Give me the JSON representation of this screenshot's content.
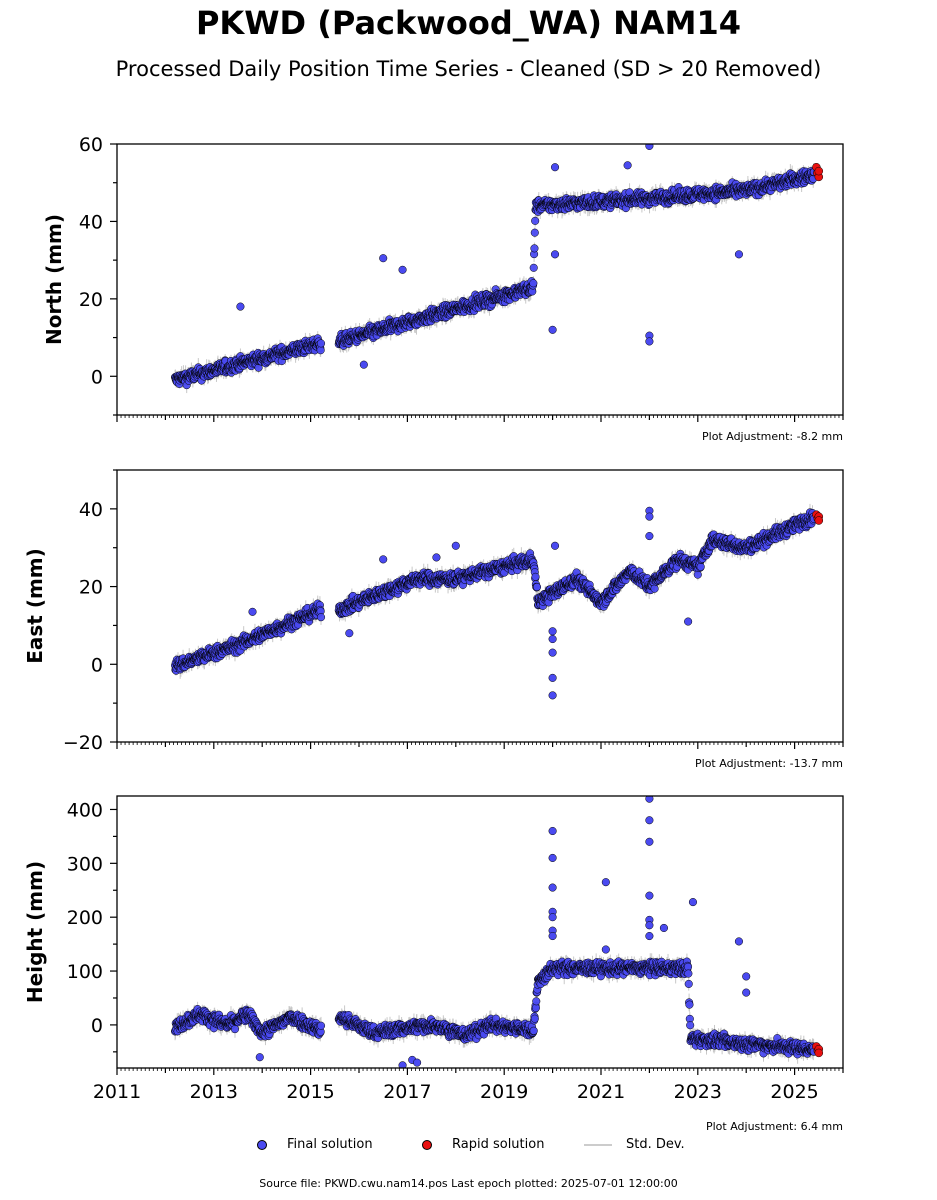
{
  "title": "PKWD (Packwood_WA) NAM14",
  "subtitle": "Processed Daily Position Time Series - Cleaned (SD > 20 Removed)",
  "legend": {
    "final": "Final solution",
    "rapid": "Rapid solution",
    "stddev": "Std. Dev."
  },
  "footer": "Source file: PKWD.cwu.nam14.pos  Last epoch plotted: 2025-07-01 12:00:00",
  "colors": {
    "final": "#4a4af0",
    "rapid": "#e81010",
    "stddev": "#c8c8c8",
    "edge": "#000000"
  },
  "chart_data": [
    {
      "type": "scatter",
      "ylabel": "North (mm)",
      "ylim": [
        -10,
        60
      ],
      "yticks": [
        0,
        20,
        40,
        60
      ],
      "xlim": [
        2011,
        2026
      ],
      "xticks": [],
      "adjustment": "Plot Adjustment: -8.2 mm",
      "trend": [
        [
          2012.2,
          -1
        ],
        [
          2015.2,
          8.5
        ],
        [
          2015.6,
          9
        ],
        [
          2019.6,
          23
        ],
        [
          2019.65,
          44
        ],
        [
          2022.0,
          46
        ],
        [
          2024.0,
          48
        ],
        [
          2025.4,
          52
        ]
      ],
      "outliers": [
        [
          2013.55,
          18
        ],
        [
          2016.5,
          30.5
        ],
        [
          2016.9,
          27.5
        ],
        [
          2020.0,
          12
        ],
        [
          2022.0,
          10.5
        ],
        [
          2022.0,
          9
        ],
        [
          2022.0,
          59.5
        ],
        [
          2021.55,
          54.5
        ],
        [
          2023.85,
          31.5
        ],
        [
          2020.05,
          54
        ],
        [
          2020.05,
          31.5
        ],
        [
          2016.1,
          3
        ]
      ],
      "rapid": [
        [
          2025.45,
          54
        ],
        [
          2025.47,
          52.5
        ],
        [
          2025.5,
          51.5
        ],
        [
          2025.5,
          53
        ]
      ]
    },
    {
      "type": "scatter",
      "ylabel": "East (mm)",
      "ylim": [
        -20,
        50
      ],
      "yticks": [
        -20,
        0,
        20,
        40
      ],
      "xlim": [
        2011,
        2026
      ],
      "xticks": [],
      "adjustment": "Plot Adjustment: -13.7 mm",
      "trend": [
        [
          2012.2,
          -0.5
        ],
        [
          2013.5,
          5
        ],
        [
          2015.2,
          14
        ],
        [
          2015.6,
          14
        ],
        [
          2017.2,
          22
        ],
        [
          2018.0,
          22
        ],
        [
          2019.6,
          27
        ],
        [
          2019.7,
          16
        ],
        [
          2020.5,
          22
        ],
        [
          2021.0,
          16
        ],
        [
          2021.6,
          24
        ],
        [
          2022.0,
          20
        ],
        [
          2022.6,
          27
        ],
        [
          2023.0,
          25
        ],
        [
          2023.3,
          32
        ],
        [
          2024.0,
          30
        ],
        [
          2025.4,
          38
        ]
      ],
      "outliers": [
        [
          2013.8,
          13.5
        ],
        [
          2016.5,
          27
        ],
        [
          2017.6,
          27.5
        ],
        [
          2018.0,
          30.5
        ],
        [
          2020.0,
          -3.5
        ],
        [
          2020.0,
          -8
        ],
        [
          2020.0,
          3
        ],
        [
          2020.0,
          6.5
        ],
        [
          2020.0,
          8.5
        ],
        [
          2020.05,
          30.5
        ],
        [
          2022.0,
          39.5
        ],
        [
          2022.0,
          38
        ],
        [
          2022.0,
          33
        ],
        [
          2022.8,
          11
        ],
        [
          2015.8,
          8
        ]
      ],
      "rapid": [
        [
          2025.45,
          38.5
        ],
        [
          2025.48,
          37.5
        ],
        [
          2025.5,
          38
        ],
        [
          2025.5,
          37
        ]
      ]
    },
    {
      "type": "scatter",
      "ylabel": "Height (mm)",
      "ylim": [
        -80,
        425
      ],
      "yticks": [
        0,
        100,
        200,
        300,
        400
      ],
      "xlim": [
        2011,
        2026
      ],
      "xticks": [
        "2011",
        "2013",
        "2015",
        "2017",
        "2019",
        "2021",
        "2023",
        "2025"
      ],
      "adjustment": "Plot Adjustment: 6.4 mm",
      "trend": [
        [
          2012.2,
          -5
        ],
        [
          2012.7,
          20
        ],
        [
          2013.3,
          0
        ],
        [
          2013.7,
          20
        ],
        [
          2014.0,
          -15
        ],
        [
          2014.6,
          15
        ],
        [
          2015.2,
          -10
        ],
        [
          2015.6,
          15
        ],
        [
          2016.3,
          -15
        ],
        [
          2017.0,
          -5
        ],
        [
          2017.6,
          0
        ],
        [
          2018.2,
          -20
        ],
        [
          2018.7,
          0
        ],
        [
          2019.6,
          -10
        ],
        [
          2019.7,
          80
        ],
        [
          2020.0,
          105
        ],
        [
          2022.8,
          105
        ],
        [
          2022.85,
          -25
        ],
        [
          2024.0,
          -35
        ],
        [
          2025.4,
          -45
        ]
      ],
      "outliers": [
        [
          2020.0,
          360
        ],
        [
          2020.0,
          310
        ],
        [
          2020.0,
          255
        ],
        [
          2020.0,
          210
        ],
        [
          2020.0,
          200
        ],
        [
          2020.0,
          175
        ],
        [
          2020.0,
          165
        ],
        [
          2021.1,
          265
        ],
        [
          2021.1,
          140
        ],
        [
          2022.0,
          420
        ],
        [
          2022.0,
          380
        ],
        [
          2022.0,
          340
        ],
        [
          2022.0,
          240
        ],
        [
          2022.0,
          195
        ],
        [
          2022.0,
          185
        ],
        [
          2022.0,
          165
        ],
        [
          2022.3,
          180
        ],
        [
          2022.9,
          228
        ],
        [
          2023.85,
          155
        ],
        [
          2024.0,
          90
        ],
        [
          2024.0,
          60
        ],
        [
          2013.95,
          -60
        ],
        [
          2016.9,
          -75
        ],
        [
          2017.1,
          -65
        ],
        [
          2017.2,
          -70
        ]
      ],
      "rapid": [
        [
          2025.45,
          -40
        ],
        [
          2025.48,
          -48
        ],
        [
          2025.5,
          -45
        ],
        [
          2025.5,
          -52
        ]
      ]
    }
  ]
}
